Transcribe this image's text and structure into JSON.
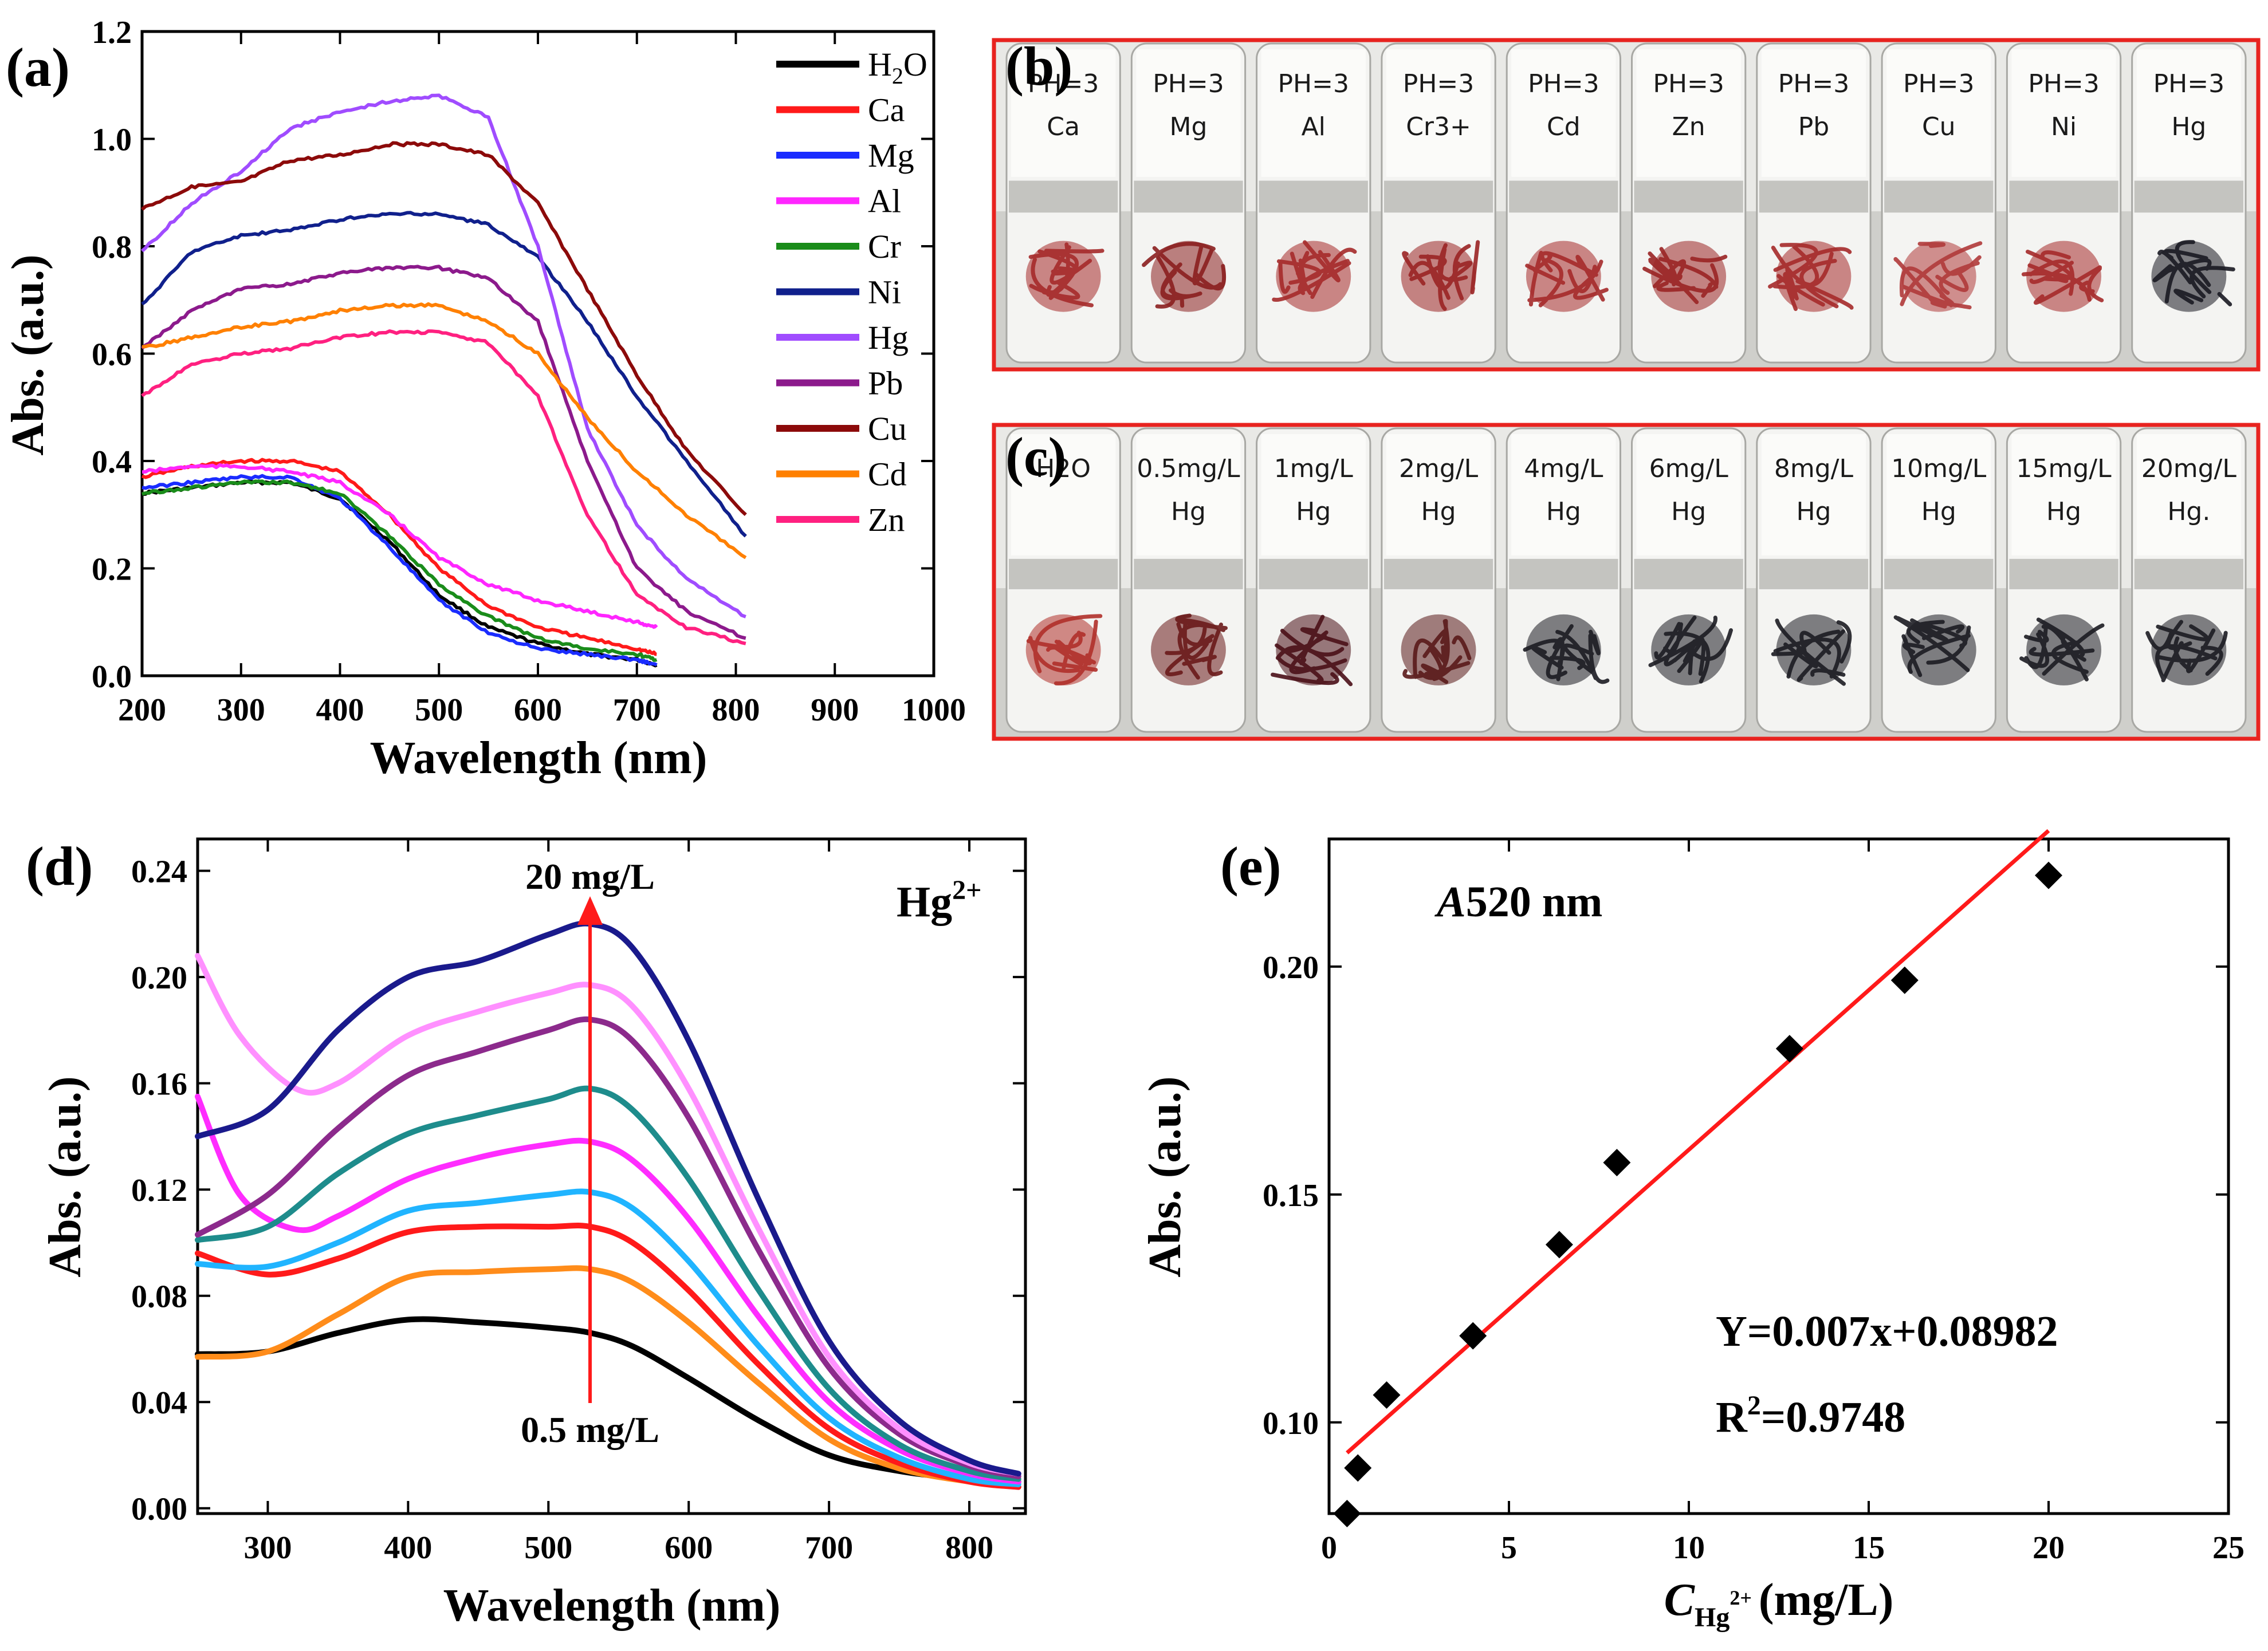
{
  "chart_data": [
    {
      "panel": "(a)",
      "type": "line",
      "xlabel": "Wavelength (nm)",
      "ylabel": "Abs. (a.u.)",
      "xlim": [
        200,
        1000
      ],
      "ylim": [
        0.0,
        1.2
      ],
      "xticks": [
        "200",
        "300",
        "400",
        "500",
        "600",
        "700",
        "800",
        "900",
        "1000"
      ],
      "yticks": [
        "0.0",
        "0.2",
        "0.4",
        "0.6",
        "0.8",
        "1.0",
        "1.2"
      ],
      "legend_position": "top-right",
      "series": [
        {
          "name": "H2O",
          "color": "#000000",
          "x": [
            200,
            250,
            300,
            350,
            400,
            450,
            500,
            550,
            600,
            650,
            700,
            720
          ],
          "y": [
            0.34,
            0.35,
            0.36,
            0.36,
            0.33,
            0.25,
            0.15,
            0.09,
            0.06,
            0.04,
            0.03,
            0.02
          ]
        },
        {
          "name": "Ca",
          "color": "#ff1a1a",
          "x": [
            200,
            250,
            300,
            350,
            400,
            450,
            500,
            550,
            600,
            650,
            700,
            720
          ],
          "y": [
            0.37,
            0.39,
            0.4,
            0.4,
            0.38,
            0.3,
            0.2,
            0.13,
            0.09,
            0.07,
            0.05,
            0.04
          ]
        },
        {
          "name": "Mg",
          "color": "#1a2cff",
          "x": [
            200,
            250,
            300,
            350,
            400,
            450,
            500,
            550,
            600,
            650,
            700,
            720
          ],
          "y": [
            0.35,
            0.36,
            0.37,
            0.37,
            0.33,
            0.24,
            0.14,
            0.08,
            0.05,
            0.04,
            0.03,
            0.02
          ]
        },
        {
          "name": "Al",
          "color": "#ff26ff",
          "x": [
            200,
            250,
            300,
            350,
            400,
            450,
            500,
            550,
            600,
            650,
            700,
            720
          ],
          "y": [
            0.38,
            0.39,
            0.39,
            0.38,
            0.36,
            0.3,
            0.22,
            0.17,
            0.14,
            0.12,
            0.1,
            0.09
          ]
        },
        {
          "name": "Cr",
          "color": "#1a8c1a",
          "x": [
            200,
            250,
            300,
            350,
            400,
            450,
            500,
            550,
            600,
            650,
            700,
            720
          ],
          "y": [
            0.34,
            0.35,
            0.36,
            0.36,
            0.34,
            0.26,
            0.17,
            0.11,
            0.07,
            0.05,
            0.04,
            0.03
          ]
        },
        {
          "name": "Ni",
          "color": "#10208c",
          "x": [
            200,
            250,
            300,
            350,
            400,
            450,
            500,
            550,
            600,
            650,
            700,
            750,
            810
          ],
          "y": [
            0.69,
            0.79,
            0.82,
            0.83,
            0.85,
            0.86,
            0.86,
            0.84,
            0.78,
            0.66,
            0.52,
            0.4,
            0.26
          ]
        },
        {
          "name": "Hg",
          "color": "#a04cff",
          "x": [
            200,
            250,
            300,
            350,
            400,
            450,
            500,
            550,
            600,
            650,
            700,
            750,
            810
          ],
          "y": [
            0.79,
            0.88,
            0.94,
            1.02,
            1.05,
            1.07,
            1.08,
            1.04,
            0.8,
            0.46,
            0.28,
            0.18,
            0.11
          ]
        },
        {
          "name": "Pb",
          "color": "#8c1a8c",
          "x": [
            200,
            250,
            300,
            350,
            400,
            450,
            500,
            550,
            600,
            650,
            700,
            750,
            810
          ],
          "y": [
            0.61,
            0.68,
            0.72,
            0.73,
            0.75,
            0.76,
            0.76,
            0.74,
            0.66,
            0.4,
            0.2,
            0.12,
            0.07
          ]
        },
        {
          "name": "Cu",
          "color": "#8c0a0a",
          "x": [
            200,
            250,
            300,
            350,
            400,
            450,
            500,
            550,
            600,
            650,
            700,
            750,
            810
          ],
          "y": [
            0.87,
            0.91,
            0.92,
            0.96,
            0.97,
            0.99,
            0.99,
            0.97,
            0.88,
            0.72,
            0.56,
            0.42,
            0.3
          ]
        },
        {
          "name": "Cd",
          "color": "#ff8000",
          "x": [
            200,
            250,
            300,
            350,
            400,
            450,
            500,
            550,
            600,
            650,
            700,
            750,
            810
          ],
          "y": [
            0.61,
            0.63,
            0.65,
            0.66,
            0.68,
            0.69,
            0.69,
            0.66,
            0.6,
            0.48,
            0.38,
            0.3,
            0.22
          ]
        },
        {
          "name": "Zn",
          "color": "#ff2080",
          "x": [
            200,
            250,
            300,
            350,
            400,
            450,
            500,
            550,
            600,
            650,
            700,
            750,
            810
          ],
          "y": [
            0.52,
            0.58,
            0.6,
            0.61,
            0.63,
            0.64,
            0.64,
            0.62,
            0.52,
            0.3,
            0.15,
            0.09,
            0.06
          ]
        }
      ]
    },
    {
      "panel": "(d)",
      "type": "line",
      "xlabel": "Wavelength (nm)",
      "ylabel": "Abs. (a.u.)",
      "xlim": [
        250,
        840
      ],
      "ylim": [
        -0.002,
        0.252
      ],
      "xticks": [
        "300",
        "400",
        "500",
        "600",
        "700",
        "800"
      ],
      "yticks": [
        "0.00",
        "0.04",
        "0.08",
        "0.12",
        "0.16",
        "0.20",
        "0.24"
      ],
      "annotations": {
        "top": "20 mg/L",
        "bottom": "0.5 mg/L",
        "ion": "Hg",
        "ion_sup": "2+"
      },
      "series": [
        {
          "name": "0.5 mg/L",
          "color": "#000000",
          "x": [
            250,
            300,
            350,
            400,
            450,
            500,
            530,
            560,
            600,
            650,
            700,
            750,
            800,
            835
          ],
          "y": [
            0.058,
            0.059,
            0.066,
            0.071,
            0.07,
            0.068,
            0.066,
            0.061,
            0.049,
            0.033,
            0.02,
            0.014,
            0.011,
            0.01
          ]
        },
        {
          "name": "1 mg/L",
          "color": "#ff8c1a",
          "x": [
            250,
            300,
            350,
            400,
            450,
            500,
            530,
            560,
            600,
            650,
            700,
            750,
            800,
            835
          ],
          "y": [
            0.057,
            0.059,
            0.073,
            0.087,
            0.089,
            0.09,
            0.09,
            0.085,
            0.07,
            0.047,
            0.026,
            0.015,
            0.01,
            0.008
          ]
        },
        {
          "name": "2 mg/L",
          "color": "#ff1a1a",
          "x": [
            250,
            300,
            350,
            400,
            450,
            500,
            530,
            560,
            600,
            650,
            700,
            750,
            800,
            835
          ],
          "y": [
            0.096,
            0.088,
            0.094,
            0.104,
            0.106,
            0.106,
            0.106,
            0.1,
            0.082,
            0.054,
            0.03,
            0.017,
            0.01,
            0.008
          ]
        },
        {
          "name": "4 mg/L",
          "color": "#20b4ff",
          "x": [
            250,
            300,
            350,
            400,
            450,
            500,
            530,
            560,
            600,
            650,
            700,
            750,
            800,
            835
          ],
          "y": [
            0.092,
            0.091,
            0.1,
            0.112,
            0.115,
            0.118,
            0.119,
            0.113,
            0.093,
            0.061,
            0.034,
            0.019,
            0.011,
            0.009
          ]
        },
        {
          "name": "6 mg/L",
          "color": "#ff2cff",
          "x": [
            250,
            280,
            320,
            350,
            400,
            450,
            500,
            530,
            560,
            600,
            650,
            700,
            750,
            800,
            835
          ],
          "y": [
            0.155,
            0.118,
            0.105,
            0.11,
            0.124,
            0.132,
            0.137,
            0.138,
            0.131,
            0.109,
            0.072,
            0.04,
            0.022,
            0.013,
            0.01
          ]
        },
        {
          "name": "8 mg/L",
          "color": "#1e8c8c",
          "x": [
            250,
            300,
            350,
            400,
            450,
            500,
            530,
            560,
            600,
            650,
            700,
            750,
            800,
            835
          ],
          "y": [
            0.101,
            0.106,
            0.126,
            0.141,
            0.148,
            0.154,
            0.158,
            0.15,
            0.124,
            0.082,
            0.045,
            0.024,
            0.014,
            0.011
          ]
        },
        {
          "name": "10 mg/L",
          "color": "#8c2a8c",
          "x": [
            250,
            300,
            350,
            400,
            450,
            500,
            530,
            560,
            600,
            650,
            700,
            750,
            800,
            835
          ],
          "y": [
            0.103,
            0.118,
            0.143,
            0.163,
            0.172,
            0.18,
            0.184,
            0.176,
            0.147,
            0.097,
            0.053,
            0.028,
            0.016,
            0.012
          ]
        },
        {
          "name": "15 mg/L",
          "color": "#ff90ff",
          "x": [
            250,
            280,
            320,
            350,
            400,
            450,
            500,
            530,
            560,
            600,
            650,
            700,
            750,
            800,
            835
          ],
          "y": [
            0.208,
            0.178,
            0.158,
            0.16,
            0.178,
            0.187,
            0.194,
            0.197,
            0.189,
            0.158,
            0.105,
            0.057,
            0.03,
            0.017,
            0.013
          ]
        },
        {
          "name": "20 mg/L",
          "color": "#1a1a8c",
          "x": [
            250,
            300,
            350,
            400,
            450,
            500,
            530,
            560,
            600,
            650,
            700,
            750,
            800,
            835
          ],
          "y": [
            0.14,
            0.15,
            0.18,
            0.2,
            0.206,
            0.216,
            0.22,
            0.211,
            0.176,
            0.116,
            0.063,
            0.033,
            0.018,
            0.013
          ]
        }
      ]
    },
    {
      "panel": "(e)",
      "type": "scatter",
      "xlabel": "C",
      "xlabel_sub": "Hg",
      "xlabel_sup": "2+",
      "xlabel_unit": "(mg/L)",
      "ylabel": "Abs. (a.u.)",
      "xlim": [
        0,
        25
      ],
      "ylim": [
        0.08,
        0.228
      ],
      "xticks": [
        "0",
        "5",
        "10",
        "15",
        "20",
        "25"
      ],
      "yticks": [
        "0.10",
        "0.15",
        "0.20"
      ],
      "title": "A520 nm",
      "title_italic": "A",
      "title_rest": "520 nm",
      "equation": "Y=0.007x+0.08982",
      "r2_label": "R",
      "r2_sup": "2",
      "r2_value": "=0.9748",
      "points": {
        "x": [
          0.5,
          0.8,
          1.6,
          4.0,
          6.4,
          8.0,
          12.8,
          16.0,
          20.0
        ],
        "y": [
          0.08,
          0.09,
          0.106,
          0.119,
          0.139,
          0.157,
          0.182,
          0.197,
          0.22
        ]
      },
      "fit": {
        "slope": 0.007,
        "intercept": 0.08982,
        "x_range": [
          0.5,
          20
        ],
        "color": "#ff1a1a"
      }
    }
  ],
  "panels": {
    "a": "(a)",
    "b": "(b)",
    "c": "(c)",
    "d": "(d)",
    "e": "(e)"
  },
  "photo_b": {
    "tubes": [
      {
        "l1": "PH=3",
        "l2": "Ca",
        "fiber": "#a52a2a"
      },
      {
        "l1": "PH=3",
        "l2": "Mg",
        "fiber": "#8b1f1f"
      },
      {
        "l1": "PH=3",
        "l2": "Al",
        "fiber": "#a52a2a"
      },
      {
        "l1": "PH=3",
        "l2": "Cr3+",
        "fiber": "#9a2424"
      },
      {
        "l1": "PH=3",
        "l2": "Cd",
        "fiber": "#a52a2a"
      },
      {
        "l1": "PH=3",
        "l2": "Zn",
        "fiber": "#9a2424"
      },
      {
        "l1": "PH=3",
        "l2": "Pb",
        "fiber": "#a52a2a"
      },
      {
        "l1": "PH=3",
        "l2": "Cu",
        "fiber": "#b03a3a"
      },
      {
        "l1": "PH=3",
        "l2": "Ni",
        "fiber": "#a52a2a"
      },
      {
        "l1": "PH=3",
        "l2": "Hg",
        "fiber": "#1a1a22"
      }
    ]
  },
  "photo_c": {
    "tubes": [
      {
        "l1": "H2O",
        "l2": "",
        "fiber": "#b0302a"
      },
      {
        "l1": "0.5mg/L",
        "l2": "Hg",
        "fiber": "#6a1a1a"
      },
      {
        "l1": "1mg/L",
        "l2": "Hg",
        "fiber": "#4a1018"
      },
      {
        "l1": "2mg/L",
        "l2": "Hg",
        "fiber": "#5a1a1a"
      },
      {
        "l1": "4mg/L",
        "l2": "Hg",
        "fiber": "#1c1c22"
      },
      {
        "l1": "6mg/L",
        "l2": "Hg",
        "fiber": "#1c1c22"
      },
      {
        "l1": "8mg/L",
        "l2": "Hg",
        "fiber": "#1c1c22"
      },
      {
        "l1": "10mg/L",
        "l2": "Hg",
        "fiber": "#1c1c22"
      },
      {
        "l1": "15mg/L",
        "l2": "Hg",
        "fiber": "#1c1c22"
      },
      {
        "l1": "20mg/L",
        "l2": "Hg.",
        "fiber": "#1c1c22"
      }
    ]
  },
  "colors": {
    "frame": "#e8231f",
    "arrow": "#ff1a1a"
  }
}
